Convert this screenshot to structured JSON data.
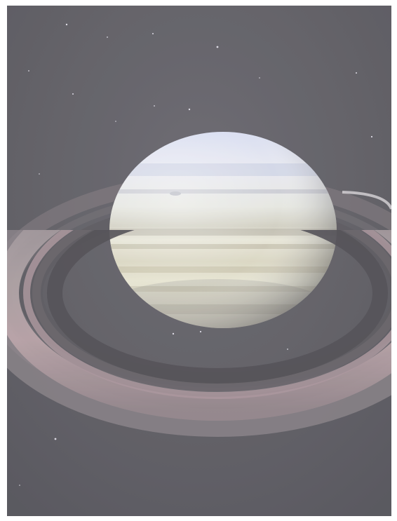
{
  "image": {
    "subject": "saturn-with-rings",
    "colors": {
      "space": "#5b5a60",
      "space_dark": "#4b4a51",
      "planet_light": "#e9ebe6",
      "planet_blue": "#c9d0e6",
      "planet_warm": "#d8d2bf",
      "planet_shadow": "#8c8f88",
      "ring_light": "#a39a9c",
      "ring_dark": "#6c686d",
      "ring_pink": "#c7a7ad",
      "border": "#ffffff"
    }
  }
}
